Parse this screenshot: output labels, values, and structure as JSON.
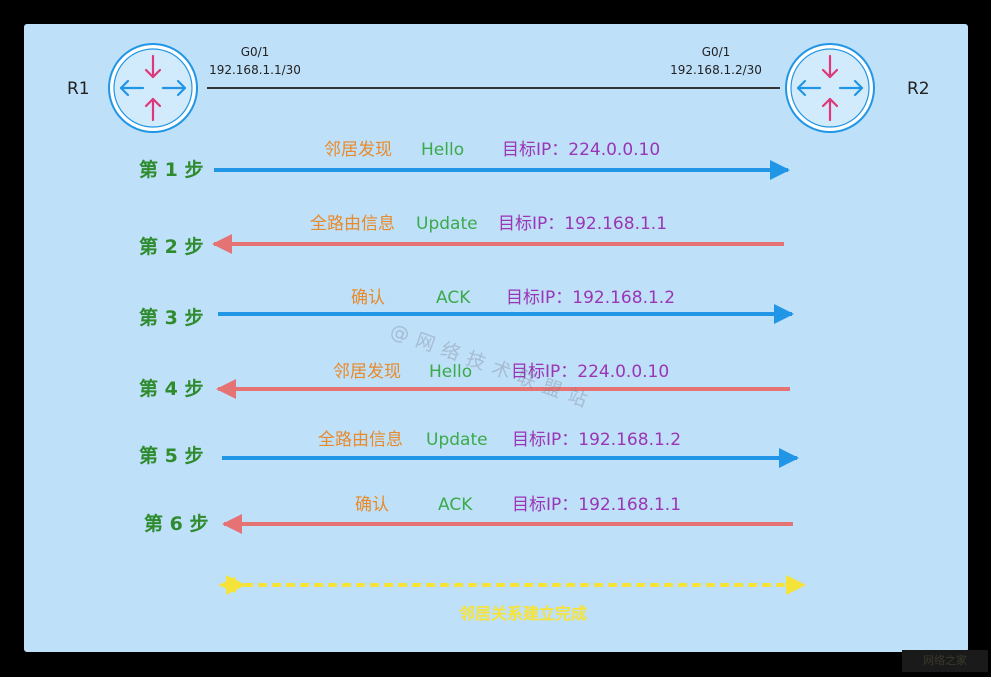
{
  "colors": {
    "background": "#bfe0f9",
    "blue_arrow": "#2196e6",
    "red_arrow": "#e57373",
    "yellow": "#f5e33a",
    "orange_text": "#e88a2a",
    "green_text": "#3aaa4a",
    "purple_text": "#9a35b5",
    "step_green": "#2e8b2e"
  },
  "routers": [
    {
      "name": "R1",
      "interface": "G0/1",
      "ip": "192.168.1.1/30",
      "icon": "router-icon"
    },
    {
      "name": "R2",
      "interface": "G0/1",
      "ip": "192.168.1.2/30",
      "icon": "router-icon"
    }
  ],
  "steps": [
    {
      "label": "第 1 步",
      "direction": "right",
      "type": "邻居发现",
      "packet": "Hello",
      "target": "目标IP：224.0.0.10"
    },
    {
      "label": "第 2 步",
      "direction": "left",
      "type": "全路由信息",
      "packet": "Update",
      "target": "目标IP：192.168.1.1"
    },
    {
      "label": "第 3 步",
      "direction": "right",
      "type": "确认",
      "packet": "ACK",
      "target": "目标IP：192.168.1.2"
    },
    {
      "label": "第 4 步",
      "direction": "left",
      "type": "邻居发现",
      "packet": "Hello",
      "target": "目标IP：224.0.0.10"
    },
    {
      "label": "第 5 步",
      "direction": "right",
      "type": "全路由信息",
      "packet": "Update",
      "target": "目标IP：192.168.1.2"
    },
    {
      "label": "第 6 步",
      "direction": "left",
      "type": "确认",
      "packet": "ACK",
      "target": "目标IP：192.168.1.1"
    }
  ],
  "result": {
    "text": "邻居关系建立完成",
    "icon": "double-arrow-icon"
  },
  "watermark": "@网络技术联盟站",
  "corner_logo": "网络之家"
}
